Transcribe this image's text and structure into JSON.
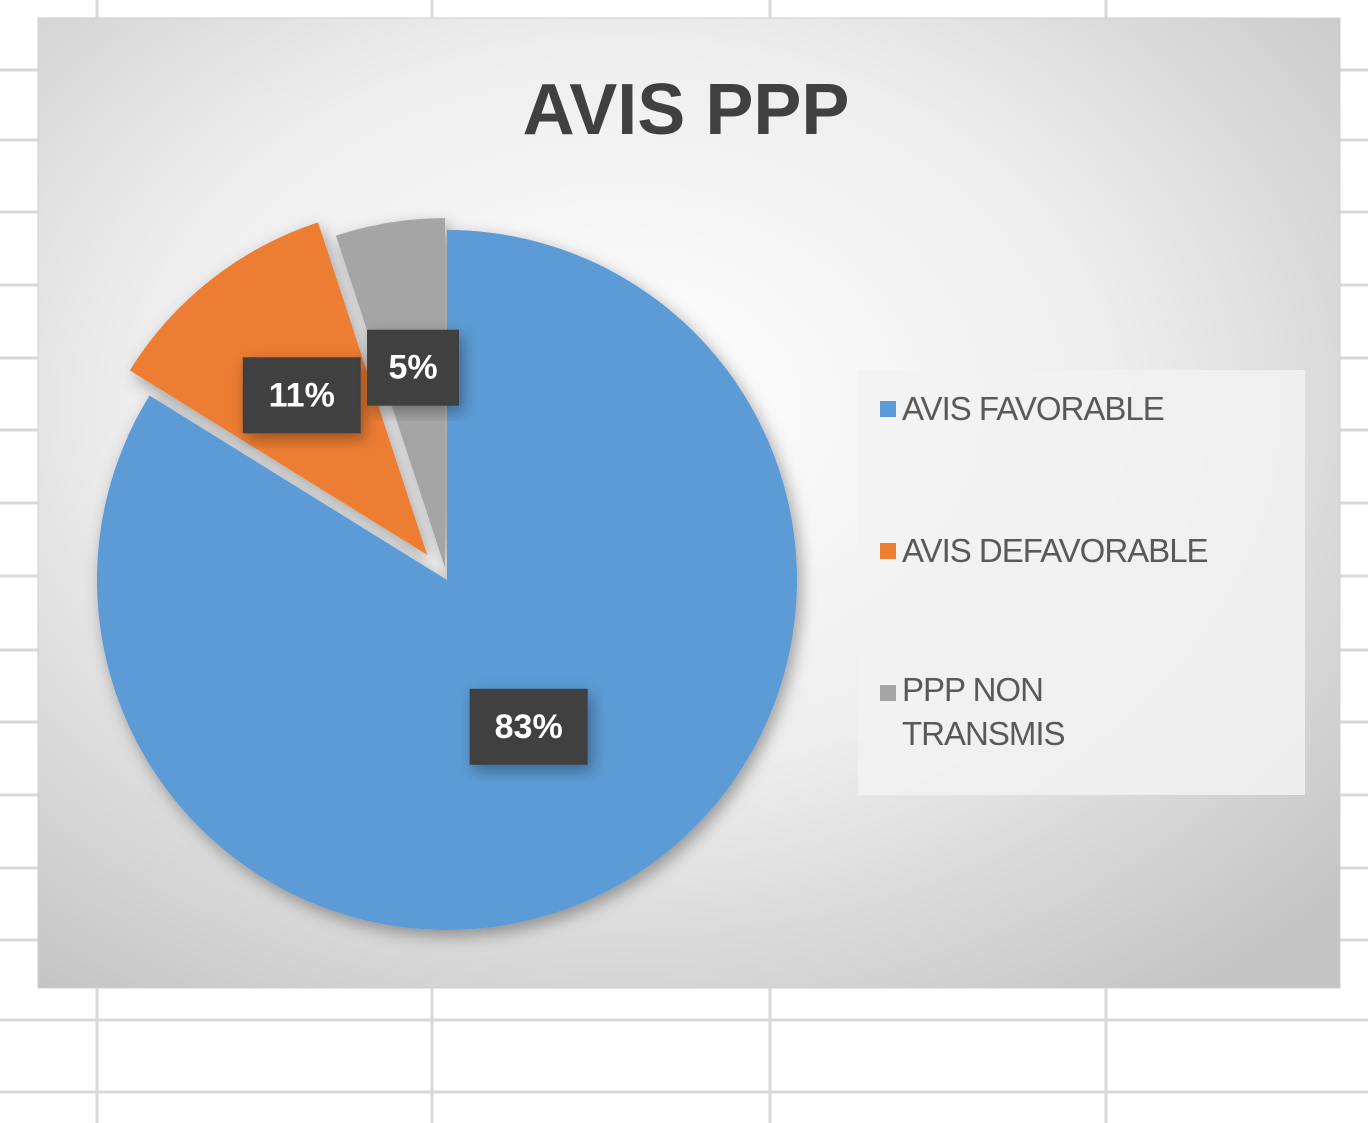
{
  "chart_data": {
    "type": "pie",
    "title": "AVIS PPP",
    "categories": [
      "AVIS FAVORABLE",
      "AVIS DEFAVORABLE",
      "PPP NON TRANSMIS"
    ],
    "values": [
      83,
      11,
      5
    ],
    "value_labels": [
      "83%",
      "11%",
      "5%"
    ],
    "colors": [
      "#5b9bd5",
      "#ed7d31",
      "#a5a5a5"
    ],
    "legend": "right"
  }
}
